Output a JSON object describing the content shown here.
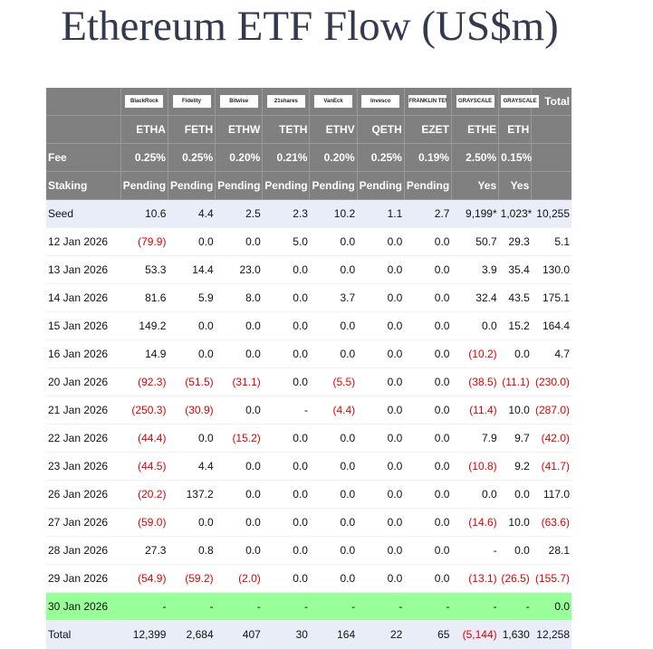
{
  "header": {
    "title": "Ethereum ETF Flow (US$m)"
  },
  "table": {
    "issuers": [
      "BlackRock",
      "Fidelity",
      "Bitwise",
      "21shares",
      "VanEck",
      "Invesco",
      "FRANKLIN TEMPLETON",
      "GRAYSCALE",
      "GRAYSCALE"
    ],
    "total_label": "Total",
    "tickers": [
      "ETHA",
      "FETH",
      "ETHW",
      "TETH",
      "ETHV",
      "QETH",
      "EZET",
      "ETHE",
      "ETH"
    ],
    "fee_label": "Fee",
    "fees": [
      "0.25%",
      "0.25%",
      "0.20%",
      "0.21%",
      "0.20%",
      "0.25%",
      "0.19%",
      "2.50%",
      "0.15%"
    ],
    "staking_label": "Staking",
    "staking": [
      "Pending",
      "Pending",
      "Pending",
      "Pending",
      "Pending",
      "Pending",
      "Pending",
      "Yes",
      "Yes"
    ],
    "rows": [
      [
        "Seed",
        "10.6",
        "4.4",
        "2.5",
        "2.3",
        "10.2",
        "1.1",
        "2.7",
        "9,199*",
        "1,023*",
        "10,255"
      ],
      [
        "12 Jan 2026",
        "(79.9)",
        "0.0",
        "0.0",
        "5.0",
        "0.0",
        "0.0",
        "0.0",
        "50.7",
        "29.3",
        "5.1"
      ],
      [
        "13 Jan 2026",
        "53.3",
        "14.4",
        "23.0",
        "0.0",
        "0.0",
        "0.0",
        "0.0",
        "3.9",
        "35.4",
        "130.0"
      ],
      [
        "14 Jan 2026",
        "81.6",
        "5.9",
        "8.0",
        "0.0",
        "3.7",
        "0.0",
        "0.0",
        "32.4",
        "43.5",
        "175.1"
      ],
      [
        "15 Jan 2026",
        "149.2",
        "0.0",
        "0.0",
        "0.0",
        "0.0",
        "0.0",
        "0.0",
        "0.0",
        "15.2",
        "164.4"
      ],
      [
        "16 Jan 2026",
        "14.9",
        "0.0",
        "0.0",
        "0.0",
        "0.0",
        "0.0",
        "0.0",
        "(10.2)",
        "0.0",
        "4.7"
      ],
      [
        "20 Jan 2026",
        "(92.3)",
        "(51.5)",
        "(31.1)",
        "0.0",
        "(5.5)",
        "0.0",
        "0.0",
        "(38.5)",
        "(11.1)",
        "(230.0)"
      ],
      [
        "21 Jan 2026",
        "(250.3)",
        "(30.9)",
        "0.0",
        "-",
        "(4.4)",
        "0.0",
        "0.0",
        "(11.4)",
        "10.0",
        "(287.0)"
      ],
      [
        "22 Jan 2026",
        "(44.4)",
        "0.0",
        "(15.2)",
        "0.0",
        "0.0",
        "0.0",
        "0.0",
        "7.9",
        "9.7",
        "(42.0)"
      ],
      [
        "23 Jan 2026",
        "(44.5)",
        "4.4",
        "0.0",
        "0.0",
        "0.0",
        "0.0",
        "0.0",
        "(10.8)",
        "9.2",
        "(41.7)"
      ],
      [
        "26 Jan 2026",
        "(20.2)",
        "137.2",
        "0.0",
        "0.0",
        "0.0",
        "0.0",
        "0.0",
        "0.0",
        "0.0",
        "117.0"
      ],
      [
        "27 Jan 2026",
        "(59.0)",
        "0.0",
        "0.0",
        "0.0",
        "0.0",
        "0.0",
        "0.0",
        "(14.6)",
        "10.0",
        "(63.6)"
      ],
      [
        "28 Jan 2026",
        "27.3",
        "0.8",
        "0.0",
        "0.0",
        "0.0",
        "0.0",
        "0.0",
        "-",
        "0.0",
        "28.1"
      ],
      [
        "29 Jan 2026",
        "(54.9)",
        "(59.2)",
        "(2.0)",
        "0.0",
        "0.0",
        "0.0",
        "0.0",
        "(13.1)",
        "(26.5)",
        "(155.7)"
      ],
      [
        "30 Jan 2026",
        "-",
        "-",
        "-",
        "-",
        "-",
        "-",
        "-",
        "-",
        "-",
        "0.0"
      ],
      [
        "Total",
        "12,399",
        "2,684",
        "407",
        "30",
        "164",
        "22",
        "65",
        "(5,144)",
        "1,630",
        "12,258"
      ]
    ]
  }
}
